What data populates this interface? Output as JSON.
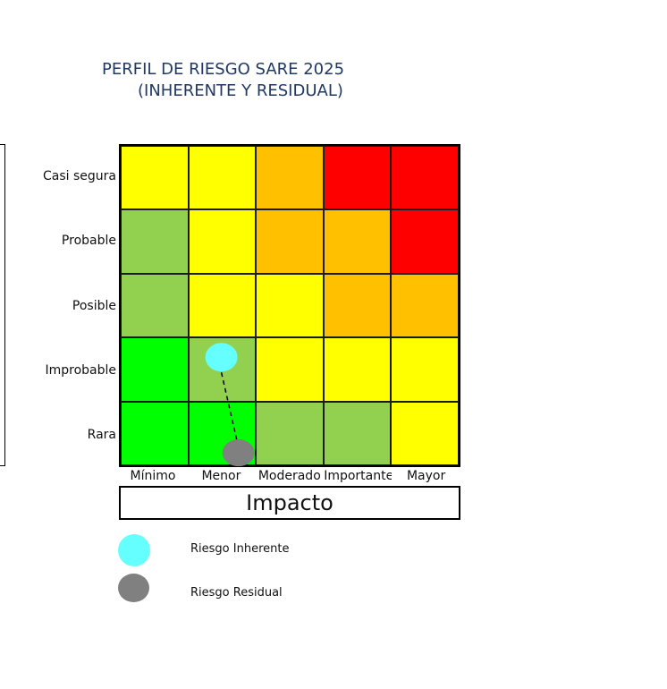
{
  "title_line1": "PERFIL DE RIESGO SARE 2025",
  "title_line2": "(INHERENTE Y RESIDUAL)",
  "x_axis_title": "Impacto",
  "chart_data": {
    "type": "heatmap",
    "title": "PERFIL DE RIESGO SARE 2025 (INHERENTE Y RESIDUAL)",
    "xlabel": "Impacto",
    "ylabel": "",
    "x_categories": [
      "Mínimo",
      "Menor",
      "Moderado",
      "Importante",
      "Mayor"
    ],
    "y_categories": [
      "Casi segura",
      "Probable",
      "Posible",
      "Improbable",
      "Rara"
    ],
    "cell_colors": [
      [
        "#ffff00",
        "#ffff00",
        "#ffc000",
        "#ff0000",
        "#ff0000"
      ],
      [
        "#92d050",
        "#ffff00",
        "#ffc000",
        "#ffc000",
        "#ff0000"
      ],
      [
        "#92d050",
        "#ffff00",
        "#ffff00",
        "#ffc000",
        "#ffc000"
      ],
      [
        "#00ff00",
        "#92d050",
        "#ffff00",
        "#ffff00",
        "#ffff00"
      ],
      [
        "#00ff00",
        "#00ff00",
        "#92d050",
        "#92d050",
        "#ffff00"
      ]
    ],
    "series": [
      {
        "name": "Riesgo Inherente",
        "color": "#66ffff",
        "impact": "Menor",
        "likelihood": "Improbable"
      },
      {
        "name": "Riesgo Residual",
        "color": "#808080",
        "impact": "Menor",
        "likelihood": "Rara"
      }
    ],
    "connector": "dashed line from inherent to residual"
  },
  "legend": [
    {
      "label": "Riesgo Inherente",
      "color": "#66ffff"
    },
    {
      "label": "Riesgo Residual",
      "color": "#808080"
    }
  ]
}
